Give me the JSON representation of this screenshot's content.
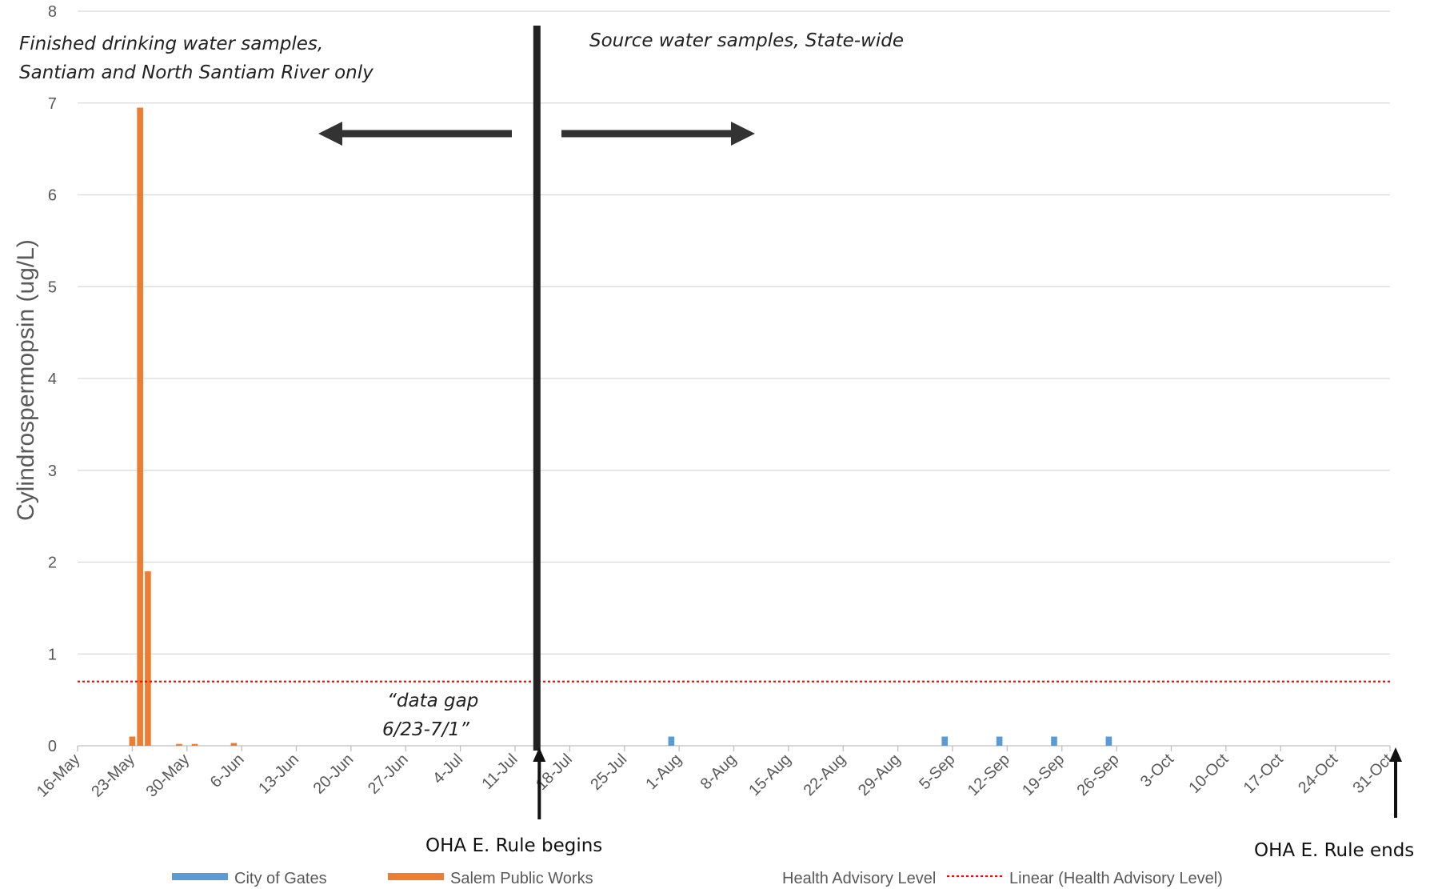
{
  "chart_data": {
    "type": "bar",
    "ylabel": "Cylindrospermopsin (ug/L)",
    "ylim": [
      0,
      8
    ],
    "yticks": [
      0,
      1,
      2,
      3,
      4,
      5,
      6,
      7,
      8
    ],
    "grid": true,
    "x_type": "date",
    "x_range": [
      "16-May",
      "31-Oct"
    ],
    "x_ticks": [
      "16-May",
      "23-May",
      "30-May",
      "6-Jun",
      "13-Jun",
      "20-Jun",
      "27-Jun",
      "4-Jul",
      "11-Jul",
      "18-Jul",
      "25-Jul",
      "1-Aug",
      "8-Aug",
      "15-Aug",
      "22-Aug",
      "29-Aug",
      "5-Sep",
      "12-Sep",
      "19-Sep",
      "26-Sep",
      "3-Oct",
      "10-Oct",
      "17-Oct",
      "24-Oct",
      "31-Oct"
    ],
    "series": [
      {
        "name": "City of Gates",
        "color": "#5b9bd5",
        "points": [
          {
            "x": "31-Jul",
            "y": 0.1
          },
          {
            "x": "4-Sep",
            "y": 0.1
          },
          {
            "x": "11-Sep",
            "y": 0.1
          },
          {
            "x": "18-Sep",
            "y": 0.1
          },
          {
            "x": "25-Sep",
            "y": 0.1
          }
        ]
      },
      {
        "name": "Salem Public Works",
        "color": "#ed7d31",
        "points": [
          {
            "x": "23-May",
            "y": 0.1
          },
          {
            "x": "24-May",
            "y": 6.95
          },
          {
            "x": "25-May",
            "y": 1.9
          },
          {
            "x": "29-May",
            "y": 0.02
          },
          {
            "x": "31-May",
            "y": 0.02
          },
          {
            "x": "5-Jun",
            "y": 0.03
          }
        ]
      }
    ],
    "reference_lines": [
      {
        "name": "Linear (Health Advisory Level)",
        "y": 0.7,
        "color": "#ff0000",
        "style": "dotted"
      }
    ],
    "legend": {
      "placement": "bottom",
      "entries": [
        {
          "label": "City of Gates",
          "color": "#5b9bd5",
          "kind": "bar"
        },
        {
          "label": "Salem Public Works",
          "color": "#ed7d31",
          "kind": "bar"
        },
        {
          "label": "Health Advisory Level",
          "color": "",
          "kind": "none"
        },
        {
          "label": "Linear (Health Advisory Level)",
          "color": "#ff0000",
          "kind": "dotted-line"
        }
      ]
    },
    "annotations": {
      "left_note_line1": "Finished drinking water samples,",
      "left_note_line2": "Santiam and North Santiam River only",
      "right_note": "Source water samples, State-wide",
      "gap_line1": "“data gap",
      "gap_line2": "6/23-7/1”",
      "rule_begins": "OHA E. Rule begins",
      "rule_ends": "OHA E. Rule ends",
      "divider_date": "14-Jul",
      "rule_end_date": "31-Oct"
    }
  }
}
